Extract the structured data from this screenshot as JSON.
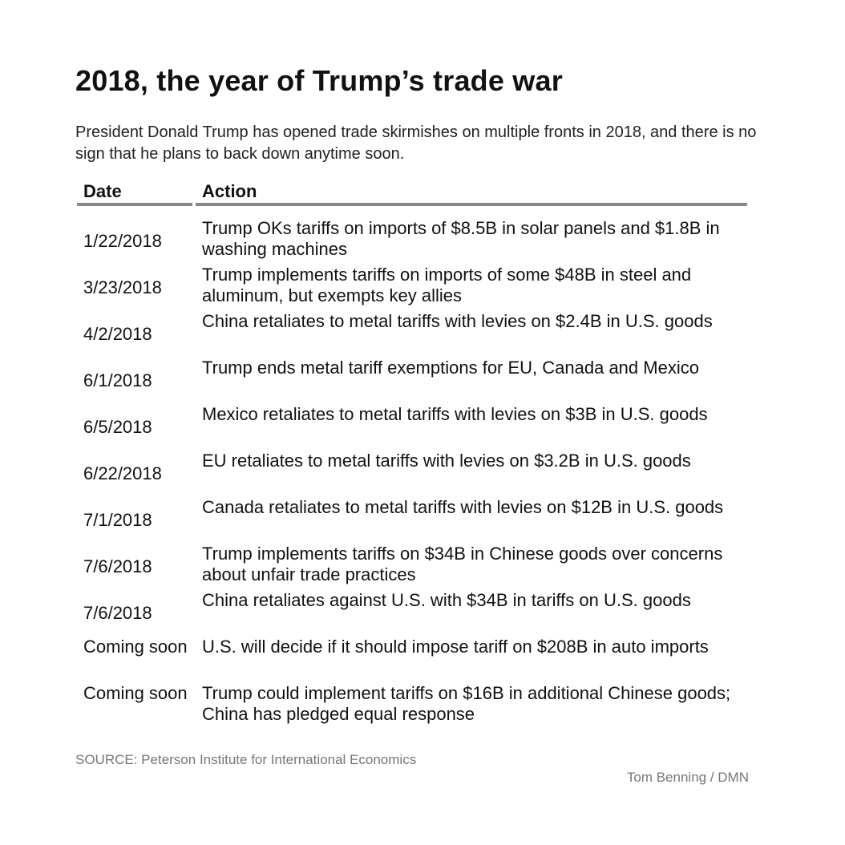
{
  "chart_data": {
    "type": "table",
    "title": "2018, the year of Trump’s trade war",
    "subtitle": "President Donald Trump has opened trade skirmishes on multiple fronts in 2018, and there is no sign that he plans to back down anytime soon.",
    "columns": [
      "Date",
      "Action"
    ],
    "rows": [
      {
        "date": "1/22/2018",
        "action": "Trump OKs tariffs on imports of $8.5B in solar panels and $1.8B in washing machines"
      },
      {
        "date": "3/23/2018",
        "action": "Trump implements tariffs on imports of some $48B in steel and aluminum, but exempts key allies"
      },
      {
        "date": "4/2/2018",
        "action": "China retaliates to metal tariffs with levies on $2.4B in U.S. goods"
      },
      {
        "date": "6/1/2018",
        "action": "Trump ends metal tariff exemptions for EU, Canada and Mexico"
      },
      {
        "date": "6/5/2018",
        "action": "Mexico retaliates to metal tariffs with levies on $3B in U.S. goods"
      },
      {
        "date": "6/22/2018",
        "action": "EU retaliates to metal tariffs with levies on $3.2B in U.S. goods"
      },
      {
        "date": "7/1/2018",
        "action": "Canada retaliates to metal tariffs with levies on $12B in U.S. goods"
      },
      {
        "date": "7/6/2018",
        "action": "Trump implements tariffs on $34B in Chinese goods over concerns about unfair trade practices"
      },
      {
        "date": "7/6/2018",
        "action": "China retaliates against U.S. with $34B in tariffs on U.S. goods"
      },
      {
        "date": "Coming soon",
        "action": "U.S. will decide if it should impose tariff on $208B in auto imports"
      },
      {
        "date": "Coming soon",
        "action": "Trump could implement tariffs on $16B in additional Chinese goods; China has pledged equal response"
      }
    ],
    "source": "SOURCE: Peterson Institute for International Economics",
    "credit": "Tom Benning / DMN"
  }
}
